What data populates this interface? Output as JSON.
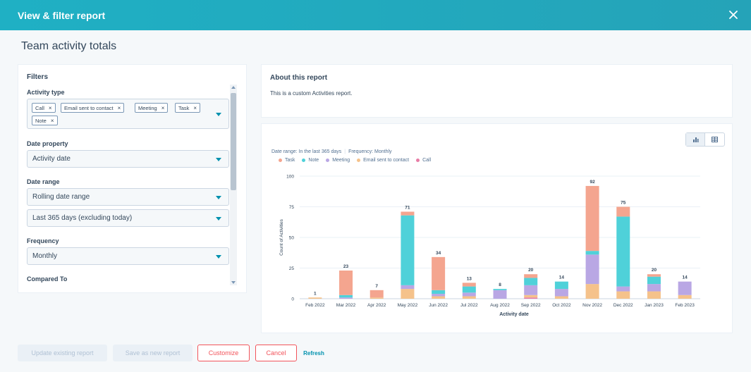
{
  "header": {
    "title": "View & filter report"
  },
  "page": {
    "title": "Team activity totals"
  },
  "filters": {
    "heading": "Filters",
    "activity_type": {
      "label": "Activity type",
      "tags": [
        "Call",
        "Email sent to contact",
        "Meeting",
        "Task",
        "Note"
      ]
    },
    "date_property": {
      "label": "Date property",
      "value": "Activity date"
    },
    "date_range": {
      "label": "Date range",
      "type_value": "Rolling date range",
      "range_value": "Last 365 days (excluding today)"
    },
    "frequency": {
      "label": "Frequency",
      "value": "Monthly"
    },
    "compared_to": {
      "label": "Compared To"
    }
  },
  "about": {
    "title": "About this report",
    "text": "This is a custom Activities report."
  },
  "chart_meta": {
    "date_range": "Date range: In the last 365 days",
    "frequency": "Frequency: Monthly"
  },
  "chart_data": {
    "type": "bar",
    "stacked": true,
    "xlabel": "Activity date",
    "ylabel": "Count of Activities",
    "ylim": [
      0,
      100
    ],
    "yticks": [
      0,
      25,
      50,
      75,
      100
    ],
    "categories": [
      "Feb 2022",
      "Mar 2022",
      "Apr 2022",
      "May 2022",
      "Jun 2022",
      "Jul 2022",
      "Aug 2022",
      "Sep 2022",
      "Oct 2022",
      "Nov 2022",
      "Dec 2022",
      "Jan 2023",
      "Feb 2023"
    ],
    "totals": [
      1,
      23,
      7,
      71,
      34,
      13,
      8,
      20,
      14,
      92,
      75,
      20,
      14
    ],
    "series": [
      {
        "name": "Call",
        "color": "#e87ca6",
        "values": [
          0,
          0,
          0,
          0,
          0,
          0,
          0,
          1,
          0,
          0,
          0,
          0,
          0
        ]
      },
      {
        "name": "Email sent to contact",
        "color": "#f5c28b",
        "values": [
          1,
          0,
          1,
          8,
          2,
          2,
          0,
          2,
          2,
          12,
          6,
          6,
          3
        ]
      },
      {
        "name": "Meeting",
        "color": "#b9a7e4",
        "values": [
          0,
          1,
          0,
          3,
          2,
          3,
          7,
          8,
          6,
          24,
          4,
          6,
          11
        ]
      },
      {
        "name": "Note",
        "color": "#4fd1d9",
        "values": [
          0,
          2,
          0,
          57,
          3,
          5,
          1,
          6,
          6,
          3,
          57,
          6,
          0
        ]
      },
      {
        "name": "Task",
        "color": "#f4a58f",
        "values": [
          0,
          20,
          6,
          3,
          27,
          3,
          0,
          3,
          0,
          53,
          8,
          2,
          0
        ]
      }
    ],
    "legend_order": [
      "Task",
      "Note",
      "Meeting",
      "Email sent to contact",
      "Call"
    ],
    "legend_position": "top-left"
  },
  "footer": {
    "update_label": "Update existing report",
    "save_new_label": "Save as new report",
    "customize_label": "Customize",
    "cancel_label": "Cancel",
    "refresh_label": "Refresh"
  },
  "icons": {
    "close": "close-icon",
    "bar_chart": "bar-chart-icon",
    "table": "table-icon"
  },
  "colors": {
    "header": "#1fb0c4",
    "accent": "#0091ae",
    "danger": "#f2545b"
  }
}
